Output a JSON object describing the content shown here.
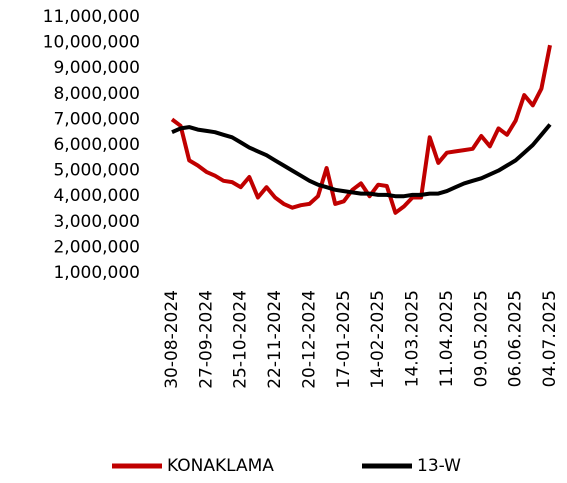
{
  "chart_data": {
    "type": "line",
    "categories": [
      "30-08-2024",
      null,
      null,
      null,
      "27-09-2024",
      null,
      null,
      null,
      "25-10-2024",
      null,
      null,
      null,
      "22-11-2024",
      null,
      null,
      null,
      "20-12-2024",
      null,
      null,
      null,
      "17-01-2025",
      null,
      null,
      null,
      "14-02-2025",
      null,
      null,
      null,
      "14.03.2025",
      null,
      null,
      null,
      "11.04.2025",
      null,
      null,
      null,
      "09.05.2025",
      null,
      null,
      null,
      "06.06.2025",
      null,
      null,
      null,
      "04.07.2025"
    ],
    "series": [
      {
        "name": "KONAKLAMA",
        "color": "#c00000",
        "values": [
          7000000,
          6750000,
          5400000,
          5200000,
          4950000,
          4800000,
          4600000,
          4550000,
          4350000,
          4750000,
          3950000,
          4350000,
          3950000,
          3700000,
          3550000,
          3650000,
          3700000,
          4000000,
          5100000,
          3700000,
          3800000,
          4250000,
          4500000,
          4000000,
          4450000,
          4400000,
          3350000,
          3600000,
          3950000,
          3950000,
          6300000,
          5300000,
          5700000,
          5750000,
          5800000,
          5850000,
          6350000,
          5950000,
          6650000,
          6400000,
          6950000,
          7950000,
          7550000,
          8200000,
          9900000
        ]
      },
      {
        "name": "13-W",
        "color": "#000000",
        "values": [
          6500000,
          6650000,
          6700000,
          6600000,
          6550000,
          6500000,
          6400000,
          6300000,
          6100000,
          5900000,
          5750000,
          5600000,
          5400000,
          5200000,
          5000000,
          4800000,
          4600000,
          4450000,
          4350000,
          4250000,
          4200000,
          4150000,
          4100000,
          4100000,
          4050000,
          4050000,
          4000000,
          4000000,
          4050000,
          4050000,
          4100000,
          4100000,
          4200000,
          4350000,
          4500000,
          4600000,
          4700000,
          4850000,
          5000000,
          5200000,
          5400000,
          5700000,
          6000000,
          6400000,
          6800000
        ]
      }
    ],
    "ylim": [
      1000000,
      11000000
    ],
    "yticks": [
      {
        "value": 1000000,
        "label": "1,000,000"
      },
      {
        "value": 2000000,
        "label": "2,000,000"
      },
      {
        "value": 3000000,
        "label": "3,000,000"
      },
      {
        "value": 4000000,
        "label": "4,000,000"
      },
      {
        "value": 5000000,
        "label": "5,000,000"
      },
      {
        "value": 6000000,
        "label": "6,000,000"
      },
      {
        "value": 7000000,
        "label": "7,000,000"
      },
      {
        "value": 8000000,
        "label": "8,000,000"
      },
      {
        "value": 9000000,
        "label": "9,000,000"
      },
      {
        "value": 10000000,
        "label": "10,000,000"
      },
      {
        "value": 11000000,
        "label": "11,000,000"
      }
    ],
    "grid": false,
    "legend": "bottom"
  }
}
